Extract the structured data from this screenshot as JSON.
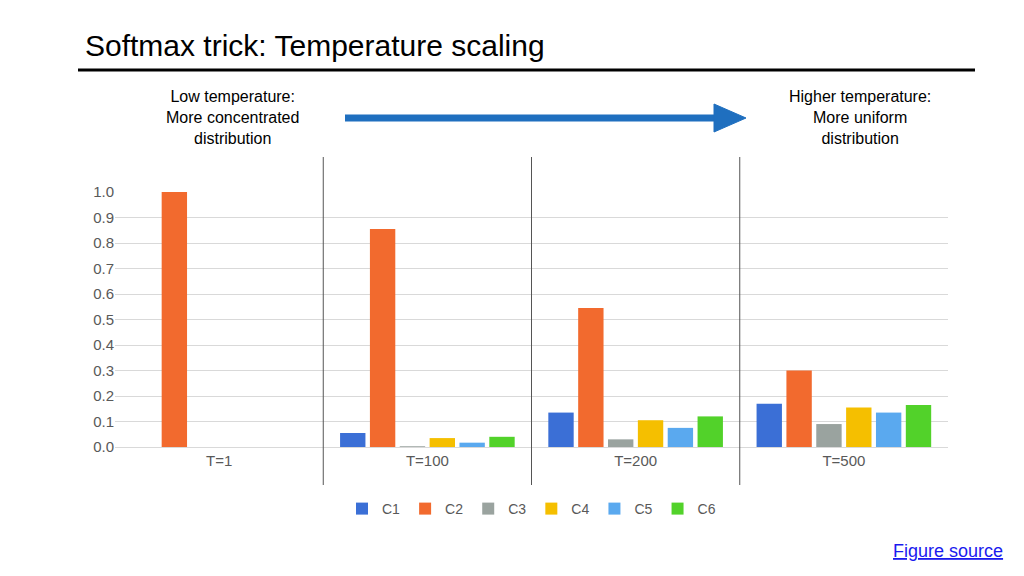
{
  "chart_data": {
    "type": "bar",
    "title": "Softmax trick: Temperature scaling",
    "annotations": [
      "Low temperature:\nMore concentrated\ndistribution",
      "Higher temperature:\nMore uniform\ndistribution"
    ],
    "footer": "Figure source",
    "categories": [
      "T=1",
      "T=100",
      "T=200",
      "T=500"
    ],
    "series": [
      {
        "name": "C1",
        "color": "#3b6fd6",
        "values": [
          0,
          0.055,
          0.135,
          0.17
        ]
      },
      {
        "name": "C2",
        "color": "#f26a2e",
        "values": [
          1.0,
          0.855,
          0.545,
          0.3
        ]
      },
      {
        "name": "C3",
        "color": "#9aa39f",
        "values": [
          0,
          0.003,
          0.03,
          0.09
        ]
      },
      {
        "name": "C4",
        "color": "#f5bf00",
        "values": [
          0,
          0.035,
          0.105,
          0.155
        ]
      },
      {
        "name": "C5",
        "color": "#5aa9ef",
        "values": [
          0,
          0.017,
          0.075,
          0.135
        ]
      },
      {
        "name": "C6",
        "color": "#52d22a",
        "values": [
          0,
          0.04,
          0.12,
          0.165
        ]
      }
    ],
    "ylim": [
      0,
      1
    ],
    "yticks": [
      {
        "value": 0,
        "label": "0.0"
      },
      0.1,
      0.2,
      0.3,
      0.4,
      0.5,
      0.6,
      0.7,
      0.8,
      0.9,
      {
        "value": 1,
        "label": "1.0"
      }
    ],
    "grid": true,
    "legend": "bottom"
  }
}
